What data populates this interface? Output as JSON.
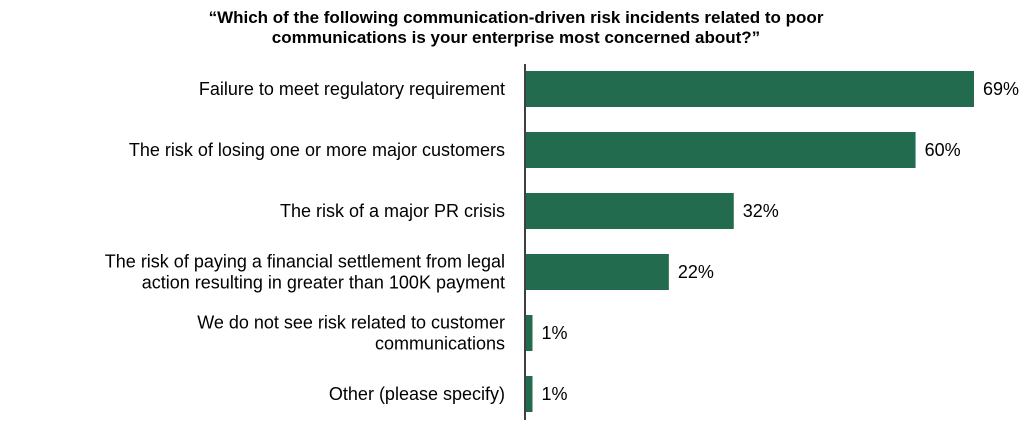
{
  "chart_data": {
    "type": "bar",
    "orientation": "horizontal",
    "title_lines": [
      "“Which of the following communication-driven risk incidents related to poor",
      "communications is your enterprise most concerned about?”"
    ],
    "categories": [
      [
        "Failure to meet regulatory requirement"
      ],
      [
        "The risk of losing one or more major customers"
      ],
      [
        "The risk of a major PR crisis"
      ],
      [
        "The risk of paying a financial settlement from legal",
        "action resulting in greater than 100K payment"
      ],
      [
        "We do not see risk related to customer",
        "communications"
      ],
      [
        "Other (please specify)"
      ]
    ],
    "values": [
      69,
      60,
      32,
      22,
      1,
      1
    ],
    "value_labels": [
      "69%",
      "60%",
      "32%",
      "22%",
      "1%",
      "1%"
    ],
    "xlim": [
      0,
      69
    ],
    "grid": false,
    "legend": "none",
    "bar_color": "#236b4e",
    "axis_color": "#000000"
  }
}
